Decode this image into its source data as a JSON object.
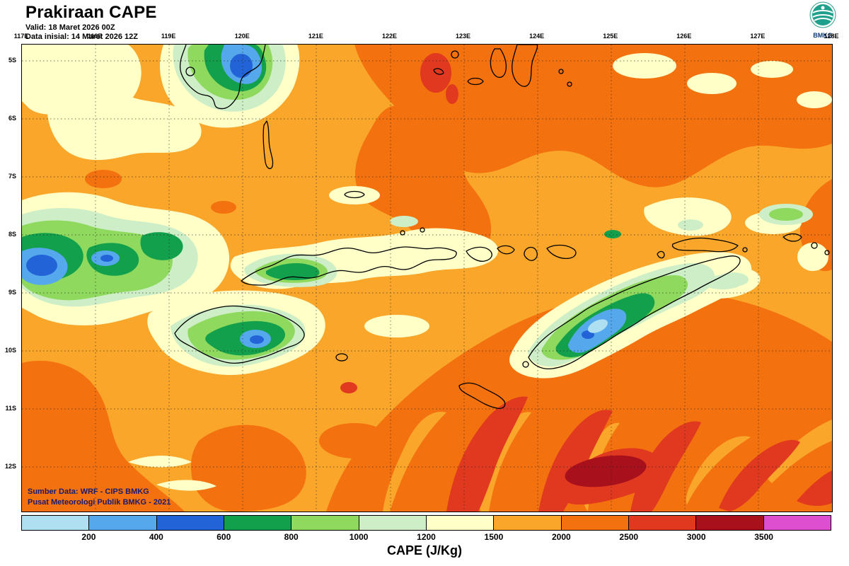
{
  "header": {
    "title": "Prakiraan CAPE",
    "valid_line": "Valid: 18 Maret 2026 00Z",
    "init_line": "Data inisial: 14 Maret 2026 12Z",
    "logo_text": "BMKG"
  },
  "axes": {
    "lon_labels": [
      "117E",
      "118E",
      "119E",
      "120E",
      "121E",
      "122E",
      "123E",
      "124E",
      "125E",
      "126E",
      "127E",
      "128E"
    ],
    "lat_labels": [
      "5S",
      "6S",
      "7S",
      "8S",
      "9S",
      "10S",
      "11S",
      "12S"
    ]
  },
  "map_overlay": {
    "source_line1": "Sumber Data: WRF - CIPS BMKG",
    "source_line2": "Pusat Meteorologi Publik BMKG -  2021"
  },
  "legend": {
    "caption": "CAPE (J/Kg)",
    "tick_labels": [
      "200",
      "400",
      "600",
      "800",
      "1000",
      "1200",
      "1500",
      "2000",
      "2500",
      "3000",
      "3500"
    ],
    "colors": [
      "#aee0f2",
      "#56a8ec",
      "#2263d8",
      "#12a04c",
      "#8ed95e",
      "#cdeec6",
      "#ffffc8",
      "#f9a62b",
      "#f3710e",
      "#e0391f",
      "#a8101c",
      "#de4fd0"
    ]
  }
}
